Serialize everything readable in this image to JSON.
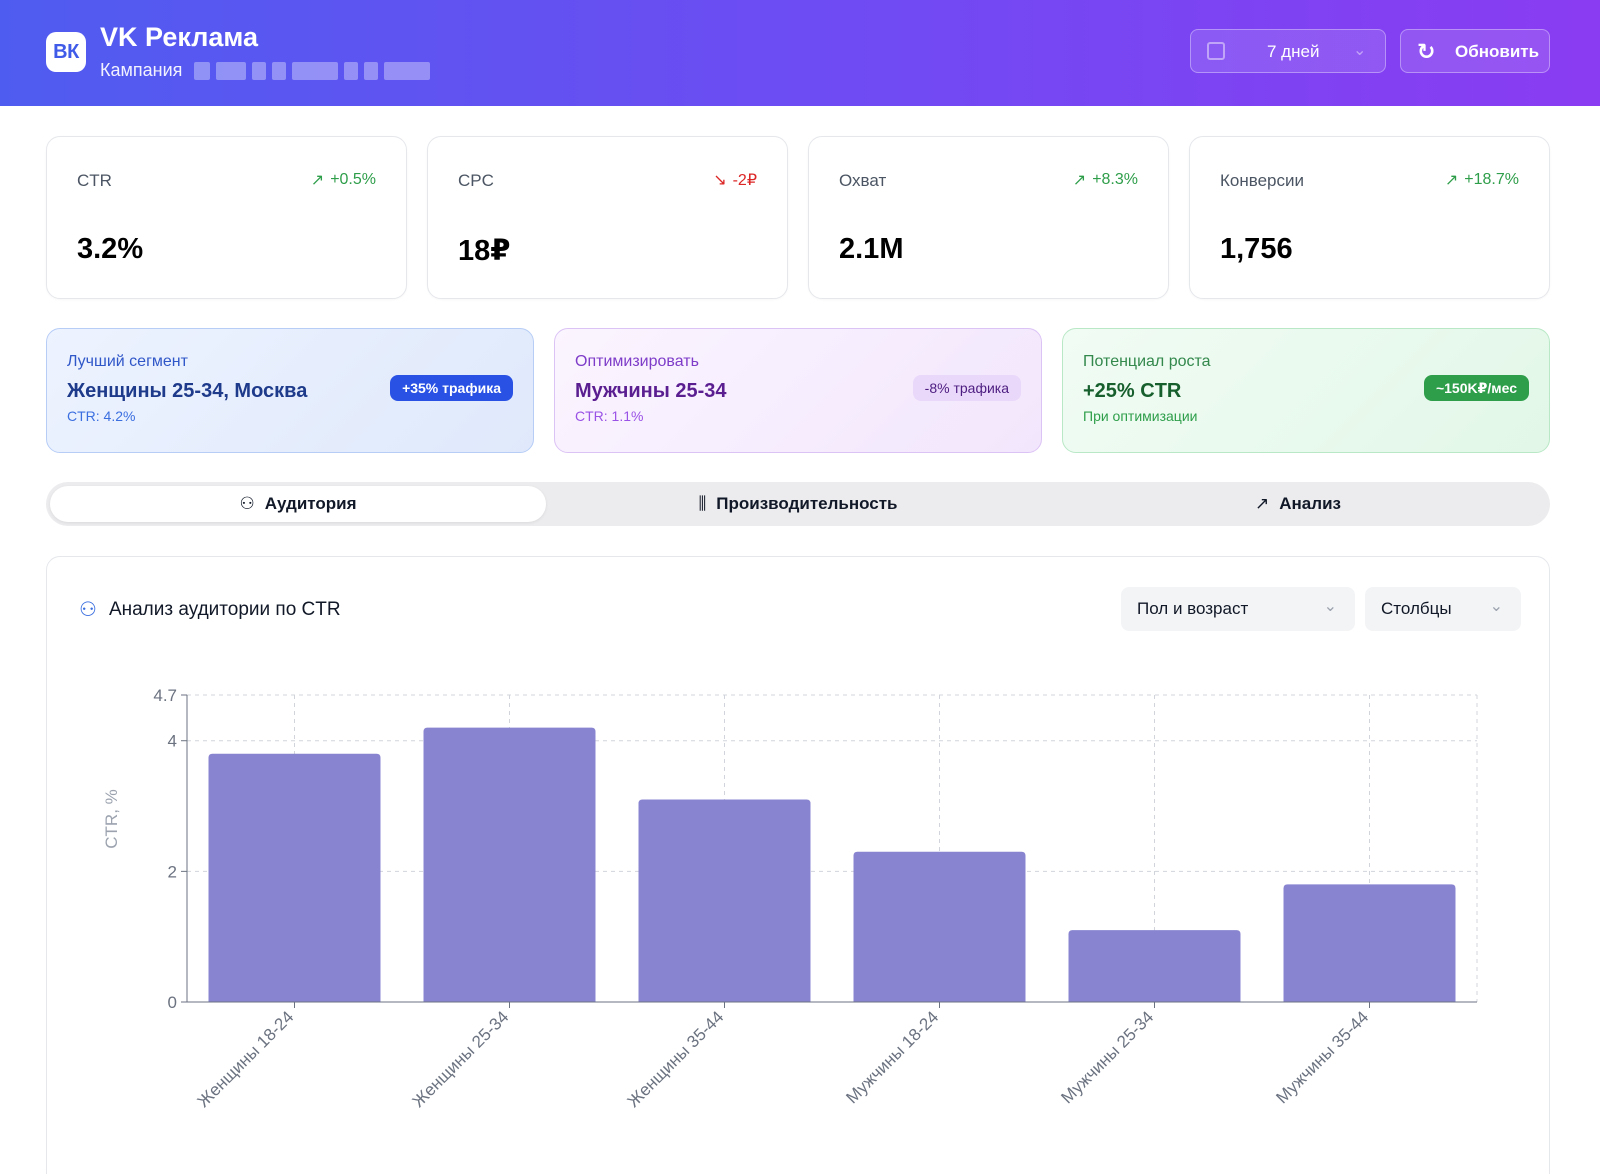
{
  "header": {
    "logo_text": "ВК",
    "app_title": "VK Реклама",
    "campaign_label": "Кампания",
    "period": "7 дней",
    "refresh_label": "Обновить",
    "period_icon": "calendar-icon",
    "refresh_icon": "refresh-icon"
  },
  "kpis": [
    {
      "name": "CTR",
      "delta": "+0.5%",
      "trend": "up",
      "value": "3.2%"
    },
    {
      "name": "CPC",
      "delta": "-2₽",
      "trend": "down",
      "value": "18₽"
    },
    {
      "name": "Охват",
      "delta": "+8.3%",
      "trend": "up",
      "value": "2.1M"
    },
    {
      "name": "Конверсии",
      "delta": "+18.7%",
      "trend": "up",
      "value": "1,756"
    }
  ],
  "insights": {
    "best": {
      "label": "Лучший сегмент",
      "title": "Женщины 25-34, Москва",
      "sub": "CTR: 4.2%",
      "badge": "+35% трафика"
    },
    "optimize": {
      "label": "Оптимизировать",
      "title": "Мужчины 25-34",
      "sub": "CTR: 1.1%",
      "badge": "-8% трафика"
    },
    "growth": {
      "label": "Потенциал роста",
      "title": "+25% CTR",
      "sub": "При оптимизации",
      "badge": "~150K₽/мес"
    }
  },
  "tabs": [
    {
      "label": "Аудитория",
      "icon": "users-icon",
      "active": true
    },
    {
      "label": "Производительность",
      "icon": "bar-chart-icon",
      "active": false
    },
    {
      "label": "Анализ",
      "icon": "trending-up-icon",
      "active": false
    }
  ],
  "panel": {
    "title": "Анализ аудитории по CTR",
    "title_icon": "users-icon",
    "group_select": "Пол и возраст",
    "type_select": "Столбцы"
  },
  "colors": {
    "bar": "#8884d0",
    "accent": "#3b6fe0",
    "up": "#2e9e4a",
    "down": "#dc2626"
  },
  "chart_data": {
    "type": "bar",
    "categories": [
      "Женщины 18-24",
      "Женщины 25-34",
      "Женщины 35-44",
      "Мужчины 18-24",
      "Мужчины 25-34",
      "Мужчины 35-44"
    ],
    "values": [
      3.8,
      4.2,
      3.1,
      2.3,
      1.1,
      1.8
    ],
    "title": "",
    "xlabel": "",
    "ylabel": "CTR, %",
    "ylim": [
      0,
      4.7
    ],
    "yticks": [
      0,
      2,
      4,
      4.7
    ],
    "grid": true
  }
}
